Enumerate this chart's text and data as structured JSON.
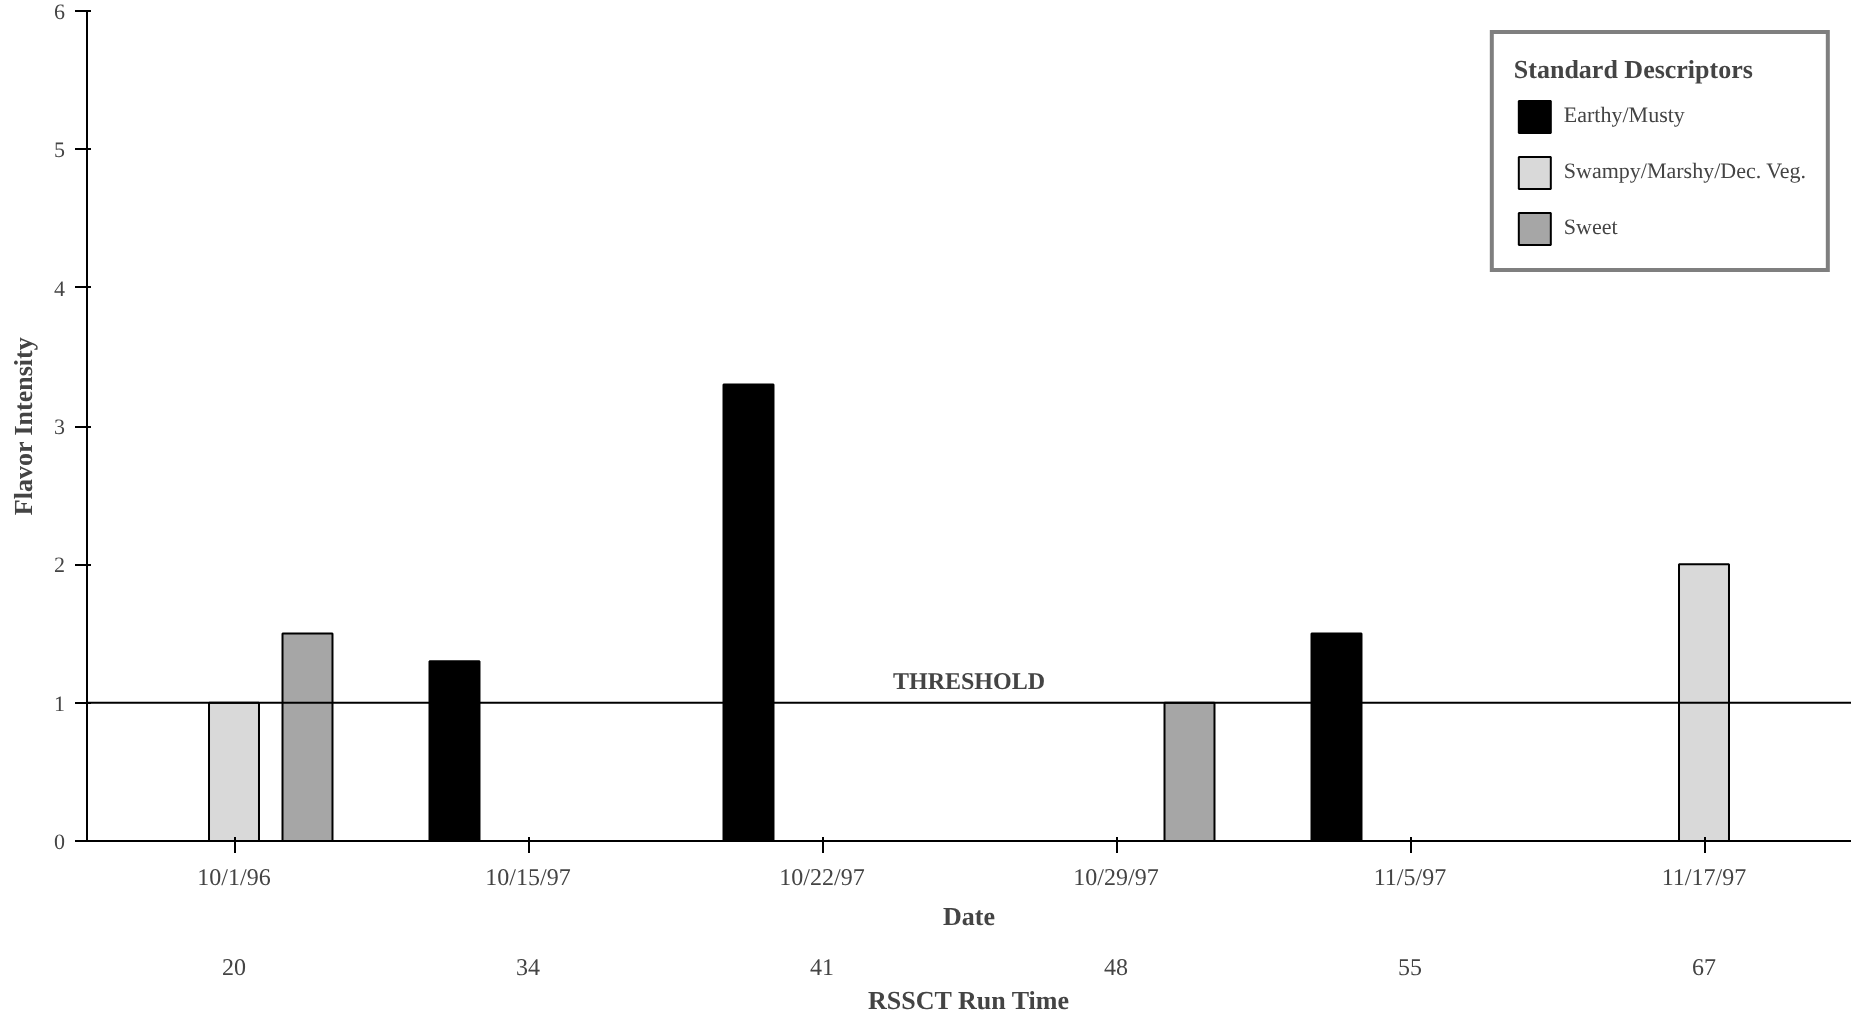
{
  "chart_data": {
    "type": "bar",
    "xlabel": "Date",
    "ylabel": "Flavor Intensity",
    "legend_title": "Standard Descriptors",
    "categories": [
      "10/1/96",
      "10/15/97",
      "10/22/97",
      "10/29/97",
      "11/5/97",
      "11/17/97"
    ],
    "annotations": [
      "20",
      "34",
      "41",
      "48",
      "55",
      "67",
      "RSSCT Run Time"
    ],
    "series": [
      {
        "name": "Earthy/Musty",
        "color": "#000000",
        "values": [
          null,
          1.3,
          3.3,
          null,
          1.5,
          null
        ]
      },
      {
        "name": "Swampy/Marshy/Dec. Veg.",
        "color": "#d9d9d9",
        "values": [
          1.0,
          null,
          null,
          null,
          null,
          2.0
        ]
      },
      {
        "name": "Sweet",
        "color": "#a6a6a6",
        "values": [
          1.5,
          null,
          null,
          1.0,
          null,
          null
        ]
      }
    ],
    "ylim": [
      0,
      6
    ],
    "yticks": [
      0,
      1,
      2,
      3,
      4,
      5,
      6
    ],
    "grid": false,
    "legend": "top right",
    "ref_lines": [
      {
        "axis": "y",
        "value": 1,
        "label": "THRESHOLD",
        "color": "#000000"
      }
    ]
  }
}
